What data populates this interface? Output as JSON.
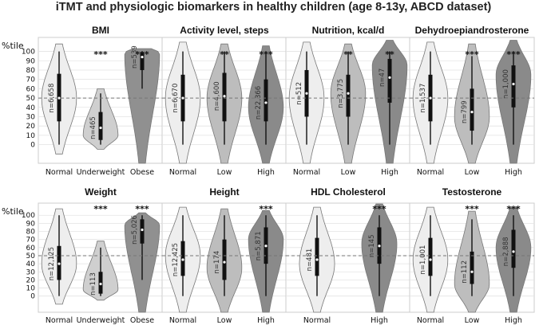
{
  "figure_title": "iTMT and physiologic biomarkers in healthy children (age 8-13y, ABCD dataset)",
  "y_axis_label": "%tile",
  "chart_data": [
    {
      "type": "violin",
      "title": "BMI",
      "ylim": [
        -20,
        115
      ],
      "y_ticks": [
        0,
        10,
        20,
        30,
        40,
        50,
        60,
        70,
        80,
        90,
        100
      ],
      "reference_line": 50,
      "categories": [
        "Normal",
        "Underweight",
        "Obese"
      ],
      "n_labels": [
        "n=6,658",
        "n=465",
        "n=539"
      ],
      "significance": [
        "",
        "***",
        "***"
      ],
      "fill_colors": [
        "#eeeeee",
        "#cfcfcf",
        "#909090"
      ],
      "ranges": [
        [
          -10,
          108
        ],
        [
          -5,
          60
        ],
        [
          -20,
          103
        ]
      ],
      "modes": [
        50,
        10,
        98
      ],
      "quartiles": [
        [
          25,
          50,
          76
        ],
        [
          5,
          18,
          35
        ],
        [
          80,
          94,
          99
        ]
      ],
      "whiskers": [
        [
          0,
          100
        ],
        [
          0,
          55
        ],
        [
          60,
          100
        ]
      ]
    },
    {
      "type": "violin",
      "title": "Activity level, steps",
      "ylim": [
        -20,
        115
      ],
      "reference_line": 50,
      "categories": [
        "Normal",
        "Low",
        "High"
      ],
      "n_labels": [
        "n=6,670",
        "n=4,600",
        "n=22,366"
      ],
      "significance": [
        "",
        "**",
        "***"
      ],
      "fill_colors": [
        "#eeeeee",
        "#bdbdbd",
        "#8a8a8a"
      ],
      "ranges": [
        [
          -20,
          110
        ],
        [
          -20,
          108
        ],
        [
          -20,
          106
        ]
      ],
      "modes": [
        50,
        50,
        40
      ],
      "quartiles": [
        [
          25,
          50,
          75
        ],
        [
          25,
          52,
          77
        ],
        [
          25,
          45,
          70
        ]
      ],
      "whiskers": [
        [
          0,
          100
        ],
        [
          0,
          100
        ],
        [
          0,
          100
        ]
      ]
    },
    {
      "type": "violin",
      "title": "Nutrition, kcal/d",
      "ylim": [
        -20,
        115
      ],
      "reference_line": 50,
      "categories": [
        "Normal",
        "Low",
        "High"
      ],
      "n_labels": [
        "n=512",
        "n=3,775",
        "n=47"
      ],
      "significance": [
        "",
        "**",
        "**"
      ],
      "fill_colors": [
        "#eeeeee",
        "#bdbdbd",
        "#8a8a8a"
      ],
      "ranges": [
        [
          -20,
          110
        ],
        [
          -20,
          108
        ],
        [
          -20,
          112
        ]
      ],
      "modes": [
        50,
        55,
        85
      ],
      "quartiles": [
        [
          30,
          55,
          80
        ],
        [
          30,
          55,
          75
        ],
        [
          45,
          72,
          92
        ]
      ],
      "whiskers": [
        [
          0,
          100
        ],
        [
          0,
          100
        ],
        [
          0,
          100
        ]
      ]
    },
    {
      "type": "violin",
      "title": "Dehydroepiandrosterone",
      "ylim": [
        -20,
        115
      ],
      "reference_line": 50,
      "categories": [
        "Normal",
        "Low",
        "High"
      ],
      "n_labels": [
        "n=1,537",
        "n=799",
        "n=1,000"
      ],
      "significance": [
        "",
        "***",
        "***"
      ],
      "fill_colors": [
        "#eeeeee",
        "#bdbdbd",
        "#8a8a8a"
      ],
      "ranges": [
        [
          -20,
          110
        ],
        [
          -20,
          108
        ],
        [
          -20,
          112
        ]
      ],
      "modes": [
        50,
        30,
        75
      ],
      "quartiles": [
        [
          25,
          50,
          75
        ],
        [
          15,
          35,
          60
        ],
        [
          40,
          65,
          85
        ]
      ],
      "whiskers": [
        [
          0,
          100
        ],
        [
          0,
          95
        ],
        [
          0,
          100
        ]
      ]
    },
    {
      "type": "violin",
      "title": "Weight",
      "ylim": [
        -20,
        115
      ],
      "y_ticks": [
        0,
        10,
        20,
        30,
        40,
        50,
        60,
        70,
        80,
        90,
        100
      ],
      "reference_line": 50,
      "categories": [
        "Normal",
        "Underweight",
        "Obese"
      ],
      "n_labels": [
        "n=12,125",
        "n=113",
        "n=5,026"
      ],
      "significance": [
        "",
        "***",
        "***"
      ],
      "fill_colors": [
        "#eeeeee",
        "#cfcfcf",
        "#909090"
      ],
      "ranges": [
        [
          -10,
          108
        ],
        [
          -5,
          68
        ],
        [
          -20,
          103
        ]
      ],
      "modes": [
        40,
        8,
        88
      ],
      "quartiles": [
        [
          20,
          40,
          62
        ],
        [
          3,
          15,
          30
        ],
        [
          65,
          82,
          95
        ]
      ],
      "whiskers": [
        [
          0,
          100
        ],
        [
          0,
          60
        ],
        [
          20,
          100
        ]
      ]
    },
    {
      "type": "violin",
      "title": "Height",
      "ylim": [
        -20,
        115
      ],
      "reference_line": 50,
      "categories": [
        "Normal",
        "Low",
        "High"
      ],
      "n_labels": [
        "n=12,425",
        "n=174",
        "n=5,871"
      ],
      "significance": [
        "",
        "",
        "***"
      ],
      "fill_colors": [
        "#eeeeee",
        "#bdbdbd",
        "#8a8a8a"
      ],
      "ranges": [
        [
          -20,
          110
        ],
        [
          -20,
          108
        ],
        [
          -20,
          106
        ]
      ],
      "modes": [
        50,
        35,
        70
      ],
      "quartiles": [
        [
          25,
          45,
          68
        ],
        [
          20,
          42,
          70
        ],
        [
          40,
          62,
          85
        ]
      ],
      "whiskers": [
        [
          0,
          100
        ],
        [
          0,
          100
        ],
        [
          0,
          100
        ]
      ]
    },
    {
      "type": "violin",
      "title": "HDL Cholesterol",
      "ylim": [
        -20,
        115
      ],
      "reference_line": 50,
      "categories": [
        "Normal",
        "High"
      ],
      "n_labels": [
        "n=481",
        "n=145"
      ],
      "significance": [
        "",
        "***"
      ],
      "fill_colors": [
        "#eeeeee",
        "#8a8a8a"
      ],
      "ranges": [
        [
          -20,
          110
        ],
        [
          -20,
          114
        ]
      ],
      "modes": [
        40,
        65
      ],
      "quartiles": [
        [
          25,
          45,
          72
        ],
        [
          40,
          62,
          85
        ]
      ],
      "whiskers": [
        [
          0,
          100
        ],
        [
          0,
          100
        ]
      ]
    },
    {
      "type": "violin",
      "title": "Testosterone",
      "ylim": [
        -20,
        115
      ],
      "reference_line": 50,
      "categories": [
        "Normal",
        "Low",
        "High"
      ],
      "n_labels": [
        "n=1,001",
        "n=112",
        "n=2,888"
      ],
      "significance": [
        "",
        "***",
        "***"
      ],
      "fill_colors": [
        "#eeeeee",
        "#bdbdbd",
        "#8a8a8a"
      ],
      "ranges": [
        [
          -20,
          110
        ],
        [
          -20,
          105
        ],
        [
          -20,
          110
        ]
      ],
      "modes": [
        45,
        15,
        60
      ],
      "quartiles": [
        [
          25,
          45,
          72
        ],
        [
          15,
          30,
          55
        ],
        [
          35,
          55,
          82
        ]
      ],
      "whiskers": [
        [
          0,
          100
        ],
        [
          0,
          95
        ],
        [
          0,
          100
        ]
      ]
    }
  ]
}
